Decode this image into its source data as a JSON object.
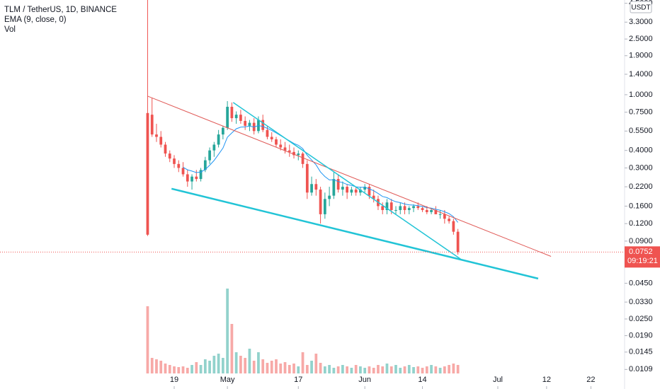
{
  "chart_data": {
    "type": "candlestick",
    "title": "TLM / TetherUS, 1D, BINANCE",
    "ema_label": "EMA (9, close, 0)",
    "ema_period": 9,
    "ema_color": "#2196f3",
    "volume_label": "Vol",
    "currency": "USDT",
    "log_scale": true,
    "grid": false,
    "up_color": "#26a69a",
    "down_color": "#ef5350",
    "volume_up_color": "#92d2cc",
    "volume_down_color": "#f7a9a7",
    "x": [
      -18,
      -17,
      -16,
      -15,
      -14,
      -13,
      -12,
      -11,
      -10,
      -9,
      -8,
      -7,
      -6,
      -5,
      -4,
      -3,
      -2,
      -1,
      0,
      1,
      2,
      3,
      4,
      5,
      6,
      7,
      8,
      9,
      10,
      11,
      12,
      13,
      14,
      15,
      16,
      17,
      18,
      19,
      20,
      21,
      22,
      23,
      24,
      25,
      26,
      27,
      28,
      29,
      30,
      31,
      32,
      33,
      34,
      35,
      36,
      37,
      38,
      39,
      40,
      41,
      42,
      43,
      44,
      45,
      46,
      47,
      48,
      49,
      50,
      51,
      52
    ],
    "open": [
      0.74,
      0.72,
      0.52,
      0.5,
      0.44,
      0.38,
      0.35,
      0.32,
      0.3,
      0.27,
      0.24,
      0.26,
      0.25,
      0.29,
      0.34,
      0.4,
      0.44,
      0.52,
      0.58,
      0.82,
      0.68,
      0.72,
      0.65,
      0.6,
      0.63,
      0.55,
      0.66,
      0.56,
      0.5,
      0.48,
      0.44,
      0.42,
      0.4,
      0.39,
      0.37,
      0.38,
      0.32,
      0.2,
      0.23,
      0.21,
      0.14,
      0.18,
      0.19,
      0.25,
      0.21,
      0.22,
      0.2,
      0.21,
      0.2,
      0.21,
      0.22,
      0.19,
      0.18,
      0.16,
      0.15,
      0.17,
      0.15,
      0.15,
      0.16,
      0.15,
      0.155,
      0.16,
      0.155,
      0.15,
      0.145,
      0.15,
      0.14,
      0.14,
      0.13,
      0.125,
      0.105
    ],
    "high": [
      5.5,
      0.95,
      0.62,
      0.55,
      0.46,
      0.4,
      0.37,
      0.34,
      0.33,
      0.29,
      0.27,
      0.29,
      0.3,
      0.36,
      0.42,
      0.46,
      0.56,
      0.6,
      0.9,
      0.88,
      0.76,
      0.78,
      0.7,
      0.66,
      0.68,
      0.7,
      0.72,
      0.6,
      0.54,
      0.5,
      0.48,
      0.46,
      0.44,
      0.42,
      0.4,
      0.39,
      0.34,
      0.26,
      0.25,
      0.22,
      0.2,
      0.22,
      0.28,
      0.27,
      0.24,
      0.23,
      0.22,
      0.22,
      0.22,
      0.23,
      0.23,
      0.21,
      0.19,
      0.17,
      0.18,
      0.18,
      0.16,
      0.17,
      0.17,
      0.16,
      0.165,
      0.17,
      0.16,
      0.16,
      0.155,
      0.16,
      0.15,
      0.15,
      0.135,
      0.13,
      0.11
    ],
    "low": [
      0.098,
      0.5,
      0.46,
      0.42,
      0.36,
      0.33,
      0.3,
      0.28,
      0.26,
      0.22,
      0.21,
      0.24,
      0.24,
      0.28,
      0.32,
      0.36,
      0.42,
      0.48,
      0.56,
      0.64,
      0.62,
      0.62,
      0.56,
      0.55,
      0.52,
      0.53,
      0.54,
      0.48,
      0.46,
      0.42,
      0.4,
      0.38,
      0.36,
      0.35,
      0.34,
      0.3,
      0.18,
      0.19,
      0.19,
      0.12,
      0.13,
      0.16,
      0.18,
      0.2,
      0.19,
      0.18,
      0.19,
      0.19,
      0.19,
      0.2,
      0.18,
      0.17,
      0.15,
      0.14,
      0.14,
      0.14,
      0.14,
      0.14,
      0.14,
      0.14,
      0.145,
      0.15,
      0.145,
      0.14,
      0.14,
      0.14,
      0.13,
      0.12,
      0.12,
      0.1,
      0.072
    ],
    "close": [
      0.1,
      0.52,
      0.5,
      0.44,
      0.38,
      0.35,
      0.32,
      0.3,
      0.27,
      0.24,
      0.26,
      0.25,
      0.29,
      0.34,
      0.4,
      0.44,
      0.52,
      0.58,
      0.82,
      0.68,
      0.72,
      0.65,
      0.6,
      0.63,
      0.55,
      0.66,
      0.56,
      0.5,
      0.48,
      0.44,
      0.42,
      0.4,
      0.39,
      0.37,
      0.38,
      0.32,
      0.2,
      0.23,
      0.21,
      0.14,
      0.18,
      0.19,
      0.25,
      0.21,
      0.22,
      0.2,
      0.21,
      0.2,
      0.21,
      0.22,
      0.19,
      0.18,
      0.16,
      0.15,
      0.17,
      0.15,
      0.15,
      0.16,
      0.15,
      0.155,
      0.16,
      0.155,
      0.15,
      0.145,
      0.15,
      0.14,
      0.14,
      0.13,
      0.125,
      0.105,
      0.0752
    ],
    "volume": [
      95,
      22,
      20,
      18,
      14,
      12,
      10,
      9,
      10,
      8,
      12,
      16,
      12,
      20,
      18,
      25,
      28,
      22,
      120,
      70,
      30,
      25,
      22,
      35,
      18,
      30,
      20,
      15,
      18,
      20,
      14,
      16,
      12,
      14,
      10,
      30,
      12,
      18,
      28,
      15,
      10,
      12,
      8,
      10,
      12,
      10,
      8,
      12,
      10,
      8,
      10,
      8,
      12,
      10,
      14,
      10,
      12,
      8,
      10,
      12,
      9,
      10,
      8,
      10,
      12,
      10,
      8,
      10,
      12,
      14,
      12
    ],
    "volume_lim": [
      0,
      140
    ],
    "xlim": [
      -51.3,
      89.6
    ],
    "xticks": [
      {
        "value": -12,
        "label": "19"
      },
      {
        "value": 0,
        "label": "May"
      },
      {
        "value": 16,
        "label": "17"
      },
      {
        "value": 31,
        "label": "Jun"
      },
      {
        "value": 44,
        "label": "14"
      },
      {
        "value": 61,
        "label": "Jul"
      },
      {
        "value": 72,
        "label": "12"
      },
      {
        "value": 82,
        "label": "22"
      }
    ],
    "ylim": [
      0.0079,
      4.75
    ],
    "yticks": [
      {
        "value": 4.5,
        "label": "4.5000"
      },
      {
        "value": 3.3,
        "label": "3.3000"
      },
      {
        "value": 2.5,
        "label": "2.5000"
      },
      {
        "value": 1.9,
        "label": "1.9000"
      },
      {
        "value": 1.4,
        "label": "1.4000"
      },
      {
        "value": 1.0,
        "label": "1.0000"
      },
      {
        "value": 0.75,
        "label": "0.7500"
      },
      {
        "value": 0.55,
        "label": "0.5500"
      },
      {
        "value": 0.4,
        "label": "0.4000"
      },
      {
        "value": 0.3,
        "label": "0.3000"
      },
      {
        "value": 0.22,
        "label": "0.2200"
      },
      {
        "value": 0.16,
        "label": "0.1600"
      },
      {
        "value": 0.12,
        "label": "0.1200"
      },
      {
        "value": 0.09,
        "label": "0.0900"
      },
      {
        "value": 0.045,
        "label": "0.0450"
      },
      {
        "value": 0.033,
        "label": "0.0330"
      },
      {
        "value": 0.025,
        "label": "0.0250"
      },
      {
        "value": 0.019,
        "label": "0.0190"
      },
      {
        "value": 0.0145,
        "label": "0.0145"
      },
      {
        "value": 0.0109,
        "label": "0.0109"
      }
    ],
    "last_price": 0.0752,
    "countdown": "09:19:21",
    "drawings": [
      {
        "color": "#e05a57",
        "width": 1,
        "x": [
          -18,
          73
        ],
        "y": [
          0.977,
          0.07
        ]
      },
      {
        "color": "#22c4d6",
        "width": 1.5,
        "x": [
          1.3,
          52.6
        ],
        "y": [
          0.88,
          0.067
        ]
      },
      {
        "color": "#22c4d6",
        "width": 2.5,
        "x": [
          -12.6,
          70.1
        ],
        "y": [
          0.213,
          0.0486
        ]
      }
    ]
  }
}
